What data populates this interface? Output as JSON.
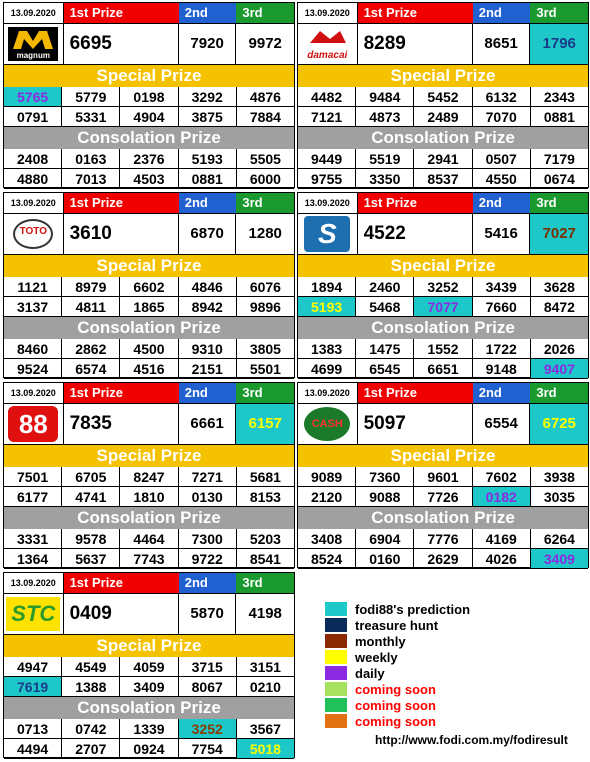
{
  "labels": {
    "first": "1st Prize",
    "second": "2nd",
    "third": "3rd",
    "special": "Special Prize",
    "consolation": "Consolation Prize"
  },
  "blocks": [
    {
      "date": "13.09.2020",
      "logo": "magnum-logo",
      "first": "6695",
      "second": "7920",
      "third": "9972",
      "special": [
        [
          "5765",
          "5779",
          "0198",
          "3292",
          "4876"
        ],
        [
          "0791",
          "5331",
          "4904",
          "3875",
          "7884"
        ]
      ],
      "consolation": [
        [
          "2408",
          "0163",
          "2376",
          "5193",
          "5505"
        ],
        [
          "4880",
          "7013",
          "4503",
          "0881",
          "6000"
        ]
      ]
    },
    {
      "date": "13.09.2020",
      "logo": "damacai-logo",
      "first": "8289",
      "second": "8651",
      "third": "1796",
      "special": [
        [
          "4482",
          "9484",
          "5452",
          "6132",
          "2343"
        ],
        [
          "7121",
          "4873",
          "2489",
          "7070",
          "0881"
        ]
      ],
      "consolation": [
        [
          "9449",
          "5519",
          "2941",
          "0507",
          "7179"
        ],
        [
          "9755",
          "3350",
          "8537",
          "4550",
          "0674"
        ]
      ]
    },
    {
      "date": "13.09.2020",
      "logo": "toto-logo",
      "first": "3610",
      "second": "6870",
      "third": "1280",
      "special": [
        [
          "1121",
          "8979",
          "6602",
          "4846",
          "6076"
        ],
        [
          "3137",
          "4811",
          "1865",
          "8942",
          "9896"
        ]
      ],
      "consolation": [
        [
          "8460",
          "2862",
          "4500",
          "9310",
          "3805"
        ],
        [
          "9524",
          "6574",
          "4516",
          "2151",
          "5501"
        ]
      ]
    },
    {
      "date": "13.09.2020",
      "logo": "sabah-logo",
      "first": "4522",
      "second": "5416",
      "third": "7027",
      "special": [
        [
          "1894",
          "2460",
          "3252",
          "3439",
          "3628"
        ],
        [
          "5193",
          "5468",
          "7077",
          "7660",
          "8472"
        ]
      ],
      "consolation": [
        [
          "1383",
          "1475",
          "1552",
          "1722",
          "2026"
        ],
        [
          "4699",
          "6545",
          "6651",
          "9148",
          "9407"
        ]
      ]
    },
    {
      "date": "13.09.2020",
      "logo": "88-logo",
      "first": "7835",
      "second": "6661",
      "third": "6157",
      "special": [
        [
          "7501",
          "6705",
          "8247",
          "7271",
          "5681"
        ],
        [
          "6177",
          "4741",
          "1810",
          "0130",
          "8153"
        ]
      ],
      "consolation": [
        [
          "3331",
          "9578",
          "4464",
          "7300",
          "5203"
        ],
        [
          "1364",
          "5637",
          "7743",
          "9722",
          "8541"
        ]
      ]
    },
    {
      "date": "13.09.2020",
      "logo": "cash-sweep-logo",
      "first": "5097",
      "second": "6554",
      "third": "6725",
      "special": [
        [
          "9089",
          "7360",
          "9601",
          "7602",
          "3938"
        ],
        [
          "2120",
          "9088",
          "7726",
          "0182",
          "3035"
        ]
      ],
      "consolation": [
        [
          "3408",
          "6904",
          "7776",
          "4169",
          "6264"
        ],
        [
          "8524",
          "0160",
          "2629",
          "4026",
          "3409"
        ]
      ]
    },
    {
      "date": "13.09.2020",
      "logo": "stc-logo",
      "first": "0409",
      "second": "5870",
      "third": "4198",
      "special": [
        [
          "4947",
          "4549",
          "4059",
          "3715",
          "3151"
        ],
        [
          "7619",
          "1388",
          "3409",
          "8067",
          "0210"
        ]
      ],
      "consolation": [
        [
          "0713",
          "0742",
          "1339",
          "3252",
          "3567"
        ],
        [
          "4494",
          "2707",
          "0924",
          "7754",
          "5018"
        ]
      ]
    }
  ],
  "logo_text": {
    "magnum": "magnum",
    "damacai": "damacai",
    "toto": "TOTO",
    "sabah": "S",
    "88": "88",
    "cash": "CASH",
    "stc": "STC"
  },
  "legend": [
    {
      "label": "fodi88's prediction",
      "color": "#1ec8c8",
      "label_color": "#000000"
    },
    {
      "label": "treasure hunt",
      "color": "#0a2a5a",
      "label_color": "#000000"
    },
    {
      "label": "monthly",
      "color": "#8b2a00",
      "label_color": "#000000"
    },
    {
      "label": "weekly",
      "color": "#ffff00",
      "label_color": "#000000"
    },
    {
      "label": "daily",
      "color": "#8a2be2",
      "label_color": "#000000"
    },
    {
      "label": "coming soon",
      "color": "#a8e060",
      "label_color": "#ff0000"
    },
    {
      "label": "coming soon",
      "color": "#22c05a",
      "label_color": "#ff0000"
    },
    {
      "label": "coming soon",
      "color": "#e07010",
      "label_color": "#ff0000"
    }
  ],
  "link": "http://www.fodi.com.my/fodiresult"
}
